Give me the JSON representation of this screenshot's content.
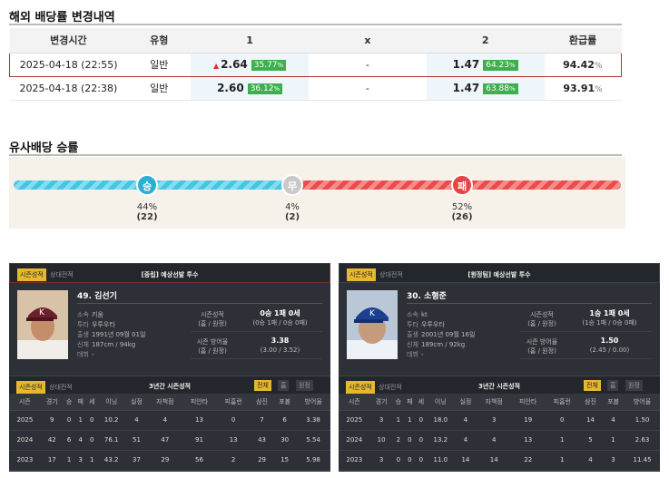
{
  "odds_section": {
    "title": "해외 배당률 변경내역",
    "headers": [
      "변경시간",
      "유형",
      "1",
      "x",
      "2",
      "환급률"
    ],
    "rows": [
      {
        "time": "2025-04-18 (22:55)",
        "type": "일반",
        "odd1": "2.64",
        "pct1": "35.77",
        "x": "-",
        "odd2": "1.47",
        "pct2": "64.23",
        "refund": "94.42",
        "arrow": "▲"
      },
      {
        "time": "2025-04-18 (22:38)",
        "type": "일반",
        "odd1": "2.60",
        "pct1": "36.12",
        "x": "-",
        "odd2": "1.47",
        "pct2": "63.88",
        "refund": "93.91",
        "arrow": ""
      }
    ],
    "pct_suffix": "%",
    "colors": {
      "pct_badge": "#3fae4f",
      "highlight_border": "#b03535"
    }
  },
  "similar_section": {
    "title": "유사배당 승률",
    "win": {
      "label": "승",
      "pct": "44%",
      "count": "(22)"
    },
    "draw": {
      "label": "무",
      "pct": "4%",
      "count": "(2)"
    },
    "loss": {
      "label": "패",
      "pct": "52%",
      "count": "(26)"
    }
  },
  "pitchers": [
    {
      "tab_on": "시즌성적",
      "tab_off": "상대전적",
      "title": "[중립] 예상선발 투수",
      "name": "49. 김선기",
      "info": [
        {
          "k": "소속",
          "v": "키움"
        },
        {
          "k": "투타",
          "v": "우투우타"
        },
        {
          "k": "출생",
          "v": "1991년 09월 01일"
        },
        {
          "k": "신체",
          "v": "187cm / 94kg"
        },
        {
          "k": "데뷔",
          "v": "-"
        }
      ],
      "season_label": "시즌성적\n(홈 / 원정)",
      "season_label1": "시즌성적",
      "season_label2": "(홈 / 원정)",
      "season_val": "0승 1패 0세",
      "season_sub": "(0승 1패 / 0승 0패)",
      "era_label1": "시즌 방어율",
      "era_label2": "(홈 / 원정)",
      "era_val": "3.38",
      "era_sub": "(3.00 / 3.52)",
      "s3_title": "3년간 시즌성적",
      "filters": [
        "전체",
        "홈",
        "원정"
      ],
      "cols": [
        "시즌",
        "경기",
        "승",
        "패",
        "세",
        "이닝",
        "실점",
        "자책점",
        "피안타",
        "피홈런",
        "삼진",
        "포볼",
        "방어율"
      ],
      "rows": [
        [
          "2025",
          "9",
          "0",
          "1",
          "0",
          "10.2",
          "4",
          "4",
          "13",
          "0",
          "7",
          "6",
          "3.38"
        ],
        [
          "2024",
          "42",
          "6",
          "4",
          "0",
          "76.1",
          "51",
          "47",
          "91",
          "13",
          "43",
          "30",
          "5.54"
        ],
        [
          "2023",
          "17",
          "1",
          "3",
          "1",
          "43.2",
          "37",
          "29",
          "56",
          "2",
          "29",
          "15",
          "5.98"
        ]
      ],
      "cap_color": "#6b1f2a"
    },
    {
      "tab_on": "시즌성적",
      "tab_off": "상대전적",
      "title": "[원정팀] 예상선발 투수",
      "name": "30. 소형준",
      "info": [
        {
          "k": "소속",
          "v": "kt"
        },
        {
          "k": "투타",
          "v": "우투우타"
        },
        {
          "k": "출생",
          "v": "2001년 09월 16일"
        },
        {
          "k": "신체",
          "v": "189cm / 92kg"
        },
        {
          "k": "데뷔",
          "v": "-"
        }
      ],
      "season_label1": "시즌성적",
      "season_label2": "(홈 / 원정)",
      "season_val": "1승 1패 0세",
      "season_sub": "(1승 1패 / 0승 0패)",
      "era_label1": "시즌 방어율",
      "era_label2": "(홈 / 원정)",
      "era_val": "1.50",
      "era_sub": "(2.45 / 0.00)",
      "s3_title": "3년간 시즌성적",
      "filters": [
        "전체",
        "홈",
        "원정"
      ],
      "cols": [
        "시즌",
        "경기",
        "승",
        "패",
        "세",
        "이닝",
        "실점",
        "자책점",
        "피안타",
        "피홈런",
        "삼진",
        "포볼",
        "방어율"
      ],
      "rows": [
        [
          "2025",
          "3",
          "1",
          "1",
          "0",
          "18.0",
          "4",
          "3",
          "19",
          "0",
          "14",
          "4",
          "1.50"
        ],
        [
          "2024",
          "10",
          "2",
          "0",
          "0",
          "13.2",
          "4",
          "4",
          "13",
          "1",
          "5",
          "1",
          "2.63"
        ],
        [
          "2023",
          "3",
          "0",
          "0",
          "0",
          "11.0",
          "14",
          "14",
          "22",
          "1",
          "4",
          "3",
          "11.45"
        ]
      ],
      "cap_color": "#1d3f8f"
    }
  ]
}
